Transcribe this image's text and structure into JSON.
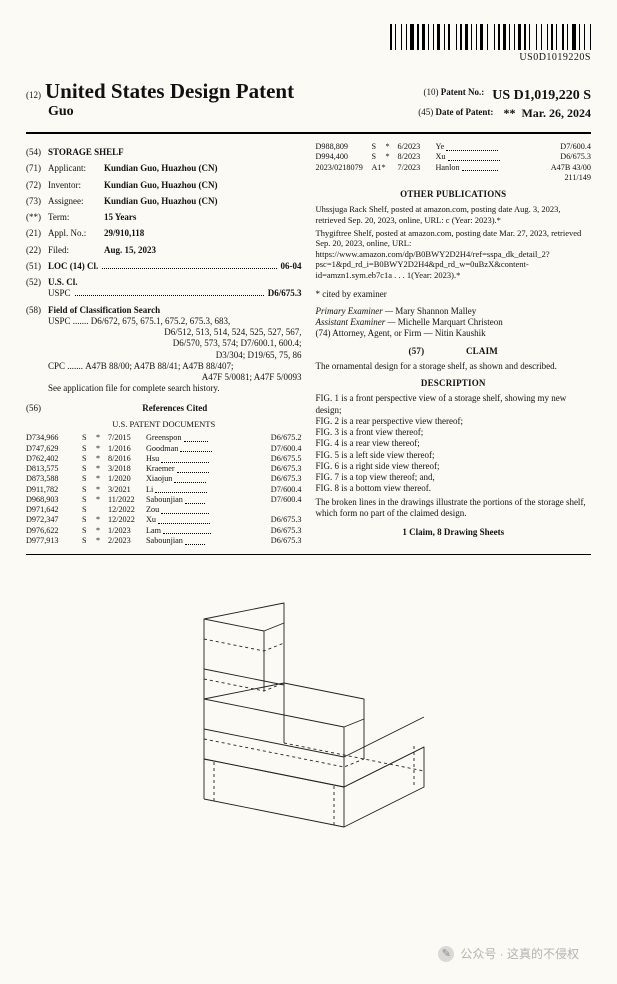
{
  "barcode_number": "US0D1019220S",
  "header": {
    "code12": "(12)",
    "title": "United States Design Patent",
    "lastname": "Guo",
    "patent_no_code": "(10)",
    "patent_no_label": "Patent No.:",
    "patent_no": "US D1,019,220 S",
    "date_code": "(45)",
    "date_label": "Date of Patent:",
    "date_star": "**",
    "date": "Mar. 26, 2024"
  },
  "left": {
    "f54": {
      "num": "(54)",
      "title": "STORAGE SHELF"
    },
    "f71": {
      "num": "(71)",
      "label": "Applicant:",
      "value": "Kundian Guo, Huazhou (CN)"
    },
    "f72": {
      "num": "(72)",
      "label": "Inventor:",
      "value": "Kundian Guo, Huazhou (CN)"
    },
    "f73": {
      "num": "(73)",
      "label": "Assignee:",
      "value": "Kundian Guo, Huazhou (CN)"
    },
    "term": {
      "num": "(**)",
      "label": "Term:",
      "value": "15 Years"
    },
    "f21": {
      "num": "(21)",
      "label": "Appl. No.:",
      "value": "29/910,118"
    },
    "f22": {
      "num": "(22)",
      "label": "Filed:",
      "value": "Aug. 15, 2023"
    },
    "f51": {
      "num": "(51)",
      "label": "LOC (14) Cl.",
      "value": "06-04"
    },
    "f52": {
      "num": "(52)",
      "label": "U.S. Cl.",
      "uspc_label": "USPC",
      "uspc_value": "D6/675.3"
    },
    "f58": {
      "num": "(58)",
      "label": "Field of Classification Search",
      "uspc_label": "USPC",
      "uspc_lines": [
        "D6/672, 675, 675.1, 675.2, 675.3, 683,",
        "D6/512, 513, 514, 524, 525, 527, 567,",
        "D6/570, 573, 574; D7/600.1, 600.4;",
        "D3/304; D19/65, 75, 86"
      ],
      "cpc_label": "CPC",
      "cpc_lines": [
        "A47B 88/00; A47B 88/41; A47B 88/407;",
        "A47F 5/0081; A47F 5/0093"
      ],
      "note": "See application file for complete search history."
    },
    "f56": {
      "num": "(56)",
      "title": "References Cited",
      "subtitle": "U.S. PATENT DOCUMENTS",
      "rows": [
        {
          "id": "D734,966",
          "t": "S",
          "s": "*",
          "d": "7/2015",
          "n": "Greenspon",
          "c": "D6/675.2"
        },
        {
          "id": "D747,629",
          "t": "S",
          "s": "*",
          "d": "1/2016",
          "n": "Goodman",
          "c": "D7/600.4"
        },
        {
          "id": "D762,402",
          "t": "S",
          "s": "*",
          "d": "8/2016",
          "n": "Hsu",
          "c": "D6/675.5"
        },
        {
          "id": "D813,575",
          "t": "S",
          "s": "*",
          "d": "3/2018",
          "n": "Kraemer",
          "c": "D6/675.3"
        },
        {
          "id": "D873,588",
          "t": "S",
          "s": "*",
          "d": "1/2020",
          "n": "Xiaojun",
          "c": "D6/675.3"
        },
        {
          "id": "D911,782",
          "t": "S",
          "s": "*",
          "d": "3/2021",
          "n": "Li",
          "c": "D7/600.4"
        },
        {
          "id": "D968,903",
          "t": "S",
          "s": "*",
          "d": "11/2022",
          "n": "Sabounjian",
          "c": "D7/600.4"
        },
        {
          "id": "D971,642",
          "t": "S",
          "s": "",
          "d": "12/2022",
          "n": "Zou",
          "c": ""
        },
        {
          "id": "D972,347",
          "t": "S",
          "s": "*",
          "d": "12/2022",
          "n": "Xu",
          "c": "D6/675.3"
        },
        {
          "id": "D976,622",
          "t": "S",
          "s": "*",
          "d": "1/2023",
          "n": "Lam",
          "c": "D6/675.3"
        },
        {
          "id": "D977,913",
          "t": "S",
          "s": "*",
          "d": "2/2023",
          "n": "Sabounjian",
          "c": "D6/675.3"
        }
      ]
    }
  },
  "right": {
    "refs_cont": [
      {
        "id": "D988,809",
        "t": "S",
        "s": "*",
        "d": "6/2023",
        "n": "Ye",
        "c": "D7/600.4"
      },
      {
        "id": "D994,400",
        "t": "S",
        "s": "*",
        "d": "8/2023",
        "n": "Xu",
        "c": "D6/675.3"
      },
      {
        "id": "2023/0218079",
        "t": "A1*",
        "s": "",
        "d": "7/2023",
        "n": "Hanlon",
        "c": "A47B 43/00"
      }
    ],
    "refs_cont_tail": "211/149",
    "other_pub_title": "OTHER PUBLICATIONS",
    "other_pub": [
      "Uhssjuga Rack Shelf, posted at amazon.com, posting date Aug. 3, 2023, retrieved Sep. 20, 2023, online, URL: c (Year: 2023).*",
      "Thygiftree Shelf, posted at amazon.com, posting date Mar. 27, 2023, retrieved Sep. 20, 2023, online, URL: https://www.amazon.com/dp/B0BWY2D2H4/ref=sspa_dk_detail_2?psc=1&pd_rd_i=B0BWY2D2H4&pd_rd_w=0uBzX&content-id=amzn1.sym.eb7c1a . . . 1(Year: 2023).*"
    ],
    "cited_note": "* cited by examiner",
    "primary_label": "Primary Examiner —",
    "primary": "Mary Shannon Malley",
    "assist_label": "Assistant Examiner —",
    "assist": "Michelle Marquart Christeon",
    "atty_label": "(74) Attorney, Agent, or Firm —",
    "atty": "Nitin Kaushik",
    "claim_title": "CLAIM",
    "claim": "The ornamental design for a storage shelf, as shown and described.",
    "desc_title": "DESCRIPTION",
    "desc": [
      "FIG. 1 is a front perspective view of a storage shelf, showing my new design;",
      "FIG. 2 is a rear perspective view thereof;",
      "FIG. 3 is a front view thereof;",
      "FIG. 4 is a rear view thereof;",
      "FIG. 5 is a left side view thereof;",
      "FIG. 6 is a right side view thereof;",
      "FIG. 7 is a top view thereof; and,",
      "FIG. 8 is a bottom view thereof."
    ],
    "broken": "The broken lines in the drawings illustrate the portions of the storage shelf, which form no part of the claimed design.",
    "claim_sheets": "1 Claim, 8 Drawing Sheets"
  },
  "watermark": "公众号 · 这真的不侵权"
}
